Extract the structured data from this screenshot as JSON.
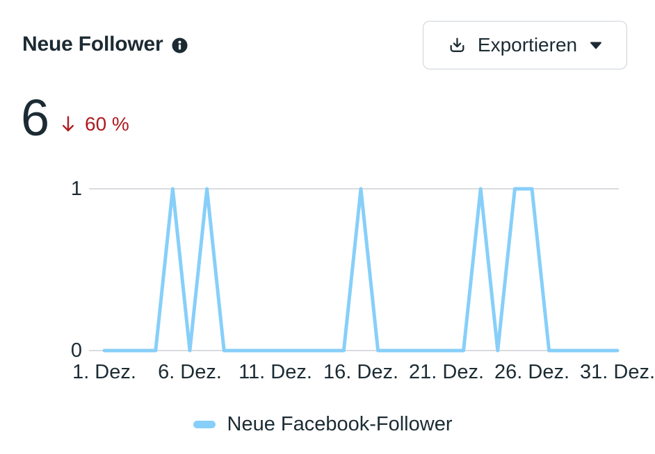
{
  "header": {
    "title": "Neue Follower",
    "export_button": {
      "label": "Exportieren"
    }
  },
  "metric": {
    "value": "6",
    "change_direction": "down",
    "change_label": "60 %"
  },
  "chart_data": {
    "type": "line",
    "title": "Neue Follower",
    "x_days": [
      1,
      2,
      3,
      4,
      5,
      6,
      7,
      8,
      9,
      10,
      11,
      12,
      13,
      14,
      15,
      16,
      17,
      18,
      19,
      20,
      21,
      22,
      23,
      24,
      25,
      26,
      27,
      28,
      29,
      30,
      31
    ],
    "series": [
      {
        "name": "Neue Facebook-Follower",
        "values": [
          0,
          0,
          0,
          0,
          1,
          0,
          1,
          0,
          0,
          0,
          0,
          0,
          0,
          0,
          0,
          1,
          0,
          0,
          0,
          0,
          0,
          0,
          1,
          0,
          1,
          1,
          0,
          0,
          0,
          0,
          0
        ]
      }
    ],
    "x_ticks": [
      {
        "day": 1,
        "label": "1. Dez."
      },
      {
        "day": 6,
        "label": "6. Dez."
      },
      {
        "day": 11,
        "label": "11. Dez."
      },
      {
        "day": 16,
        "label": "16. Dez."
      },
      {
        "day": 21,
        "label": "21. Dez."
      },
      {
        "day": 26,
        "label": "26. Dez."
      },
      {
        "day": 31,
        "label": "31. Dez."
      }
    ],
    "y_ticks": [
      1,
      0
    ],
    "ylim": [
      0,
      1
    ],
    "xlabel": "",
    "ylabel": "",
    "grid": true,
    "legend_position": "bottom",
    "line_color": "#87CFF9"
  },
  "colors": {
    "text": "#1C2B33",
    "negative": "#AC1B21",
    "line": "#87CFF9",
    "grid": "#D9DBDE",
    "button_border": "#CBD2D9"
  }
}
